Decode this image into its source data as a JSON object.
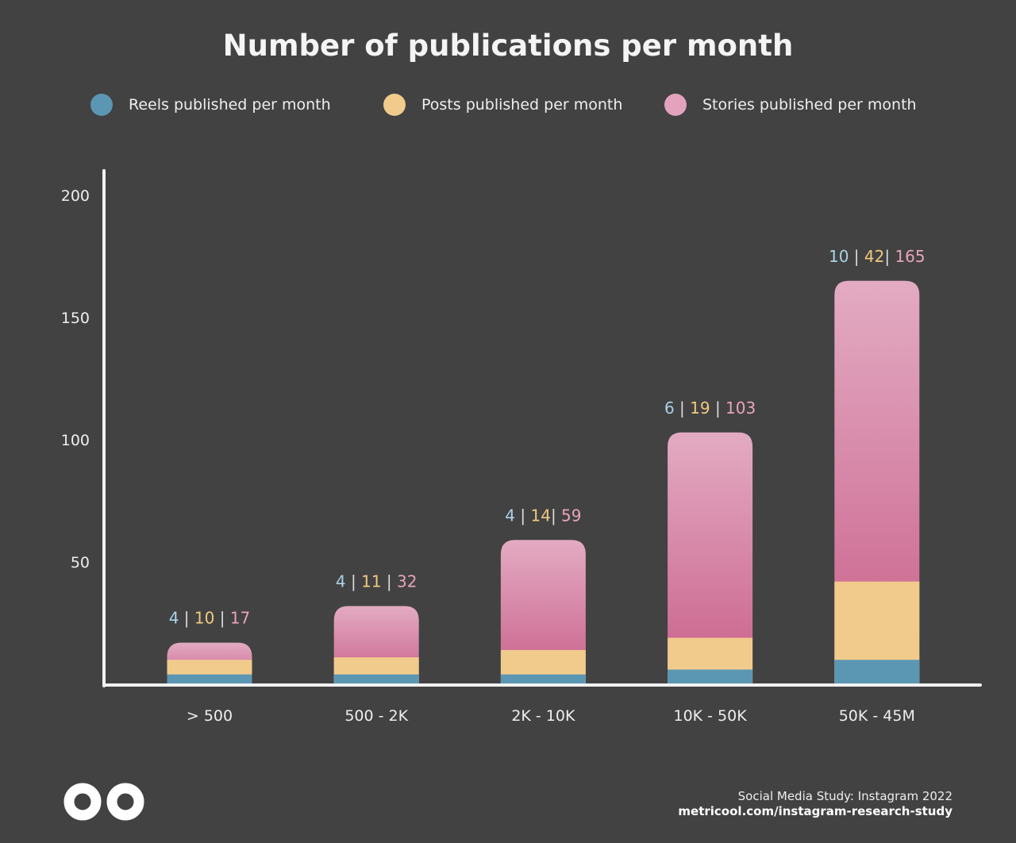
{
  "title": "Number of publications per month",
  "footer": {
    "line1": "Social Media Study: Instagram 2022",
    "line2": "metricool.com/instagram-research-study"
  },
  "chart_data": {
    "type": "bar",
    "layout": "overlapping",
    "title": "Number of publications per month",
    "categories": [
      "> 500",
      "500 - 2K",
      "2K - 10K",
      "10K - 50K",
      "50K - 45M"
    ],
    "series": [
      {
        "name": "Reels published per month",
        "color": "#5b97b3",
        "label_color": "#a9d3e6",
        "values": [
          4,
          4,
          4,
          6,
          10
        ]
      },
      {
        "name": "Posts published per month",
        "color": "#f1cb8c",
        "label_color": "#f0c97f",
        "values": [
          10,
          11,
          14,
          19,
          42
        ]
      },
      {
        "name": "Stories published per month",
        "color": "#d5789e",
        "label_color": "#e8a3bd",
        "values": [
          17,
          32,
          59,
          103,
          165
        ]
      }
    ],
    "data_labels": [
      "4 | 10 | 17",
      "4 | 11 | 32",
      "4 | 14| 59",
      "6 | 19 | 103",
      "10 | 42| 165"
    ],
    "yticks": [
      50,
      100,
      150,
      200
    ],
    "ylim": [
      0,
      200
    ],
    "grid": false,
    "legend_position": "top"
  }
}
